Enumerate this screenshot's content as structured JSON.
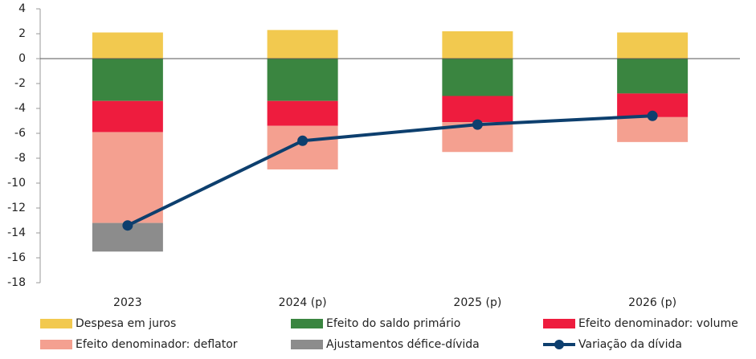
{
  "chart_data": {
    "type": "bar",
    "stacked": true,
    "categories": [
      "2023",
      "2024 (p)",
      "2025 (p)",
      "2026 (p)"
    ],
    "series": [
      {
        "name": "Despesa em juros",
        "color": "#f2c94f",
        "values": [
          2.1,
          2.3,
          2.2,
          2.1
        ]
      },
      {
        "name": "Efeito do saldo primário",
        "color": "#3a8540",
        "values": [
          -3.4,
          -3.4,
          -3.0,
          -2.8
        ]
      },
      {
        "name": "Efeito denominador: volume",
        "color": "#ee1c3e",
        "values": [
          -2.5,
          -2.0,
          -2.1,
          -1.9
        ]
      },
      {
        "name": "Efeito denominador: deflator",
        "color": "#f4a090",
        "values": [
          -7.3,
          -3.5,
          -2.4,
          -2.0
        ]
      },
      {
        "name": "Ajustamentos défice-dívida",
        "color": "#8c8c8c",
        "values": [
          -2.3,
          0,
          0,
          0
        ]
      },
      {
        "name": "Variação da dívida",
        "color": "#0d3f6e",
        "type": "line",
        "values": [
          -13.4,
          -6.6,
          -5.3,
          -4.6
        ]
      }
    ],
    "ylim": [
      -18,
      4
    ],
    "yticks": [
      -18,
      -16,
      -14,
      -12,
      -10,
      -8,
      -6,
      -4,
      -2,
      0,
      2,
      4
    ]
  }
}
